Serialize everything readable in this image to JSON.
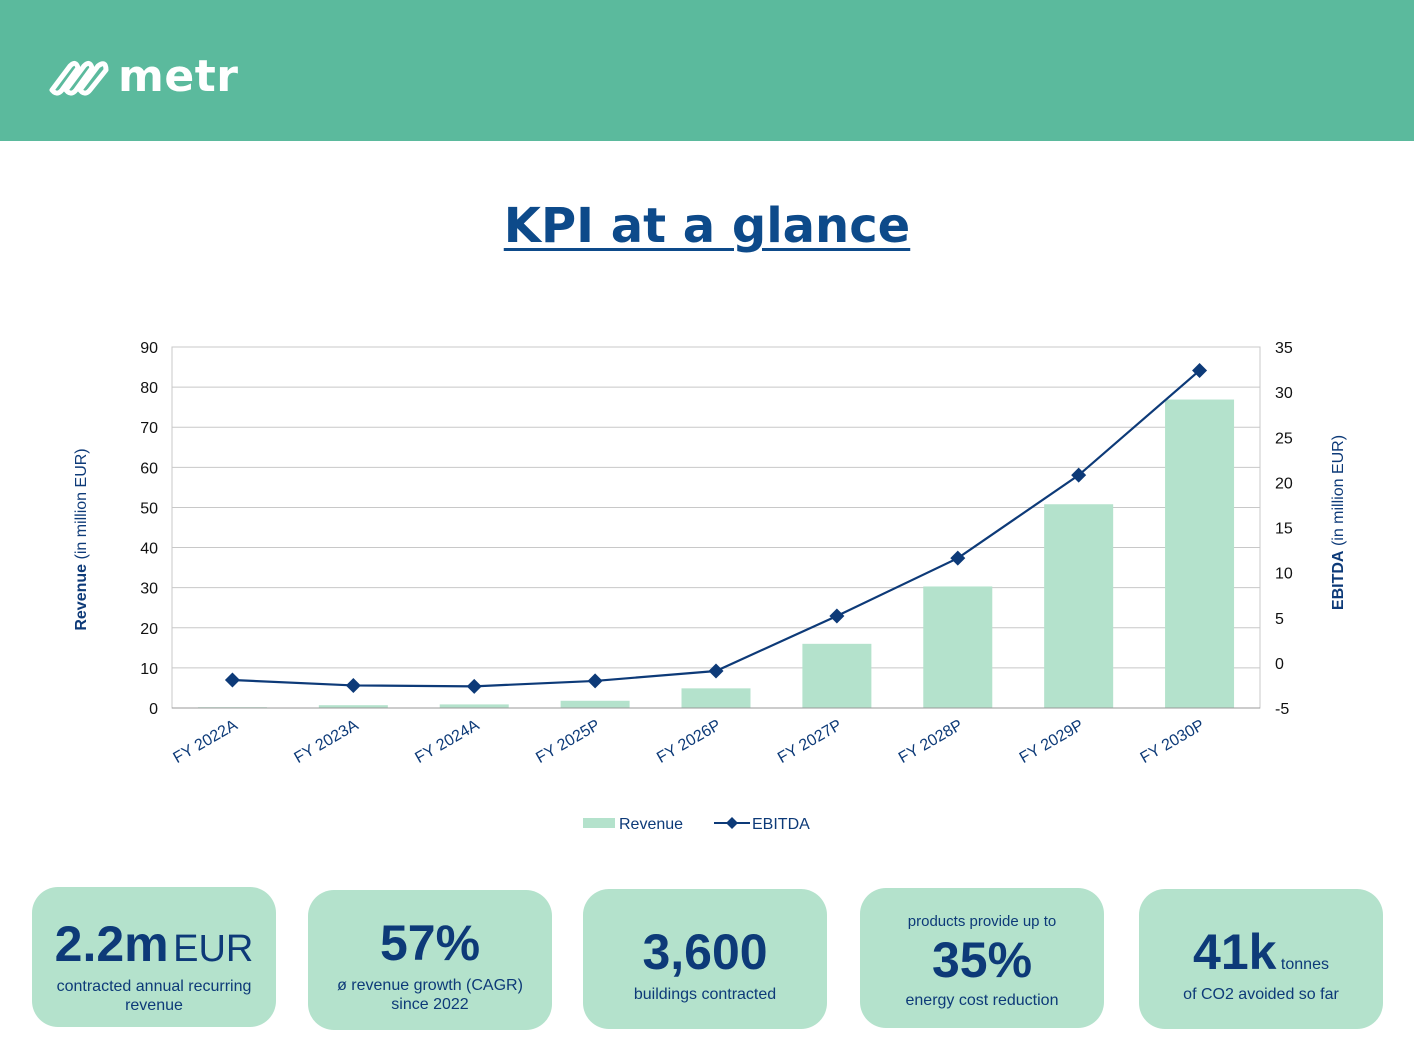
{
  "brand": {
    "name": "metr"
  },
  "title": "KPI at a glance",
  "chart_data": {
    "type": "bar+line",
    "categories": [
      "FY 2022A",
      "FY 2023A",
      "FY 2024A",
      "FY 2025P",
      "FY 2026P",
      "FY 2027P",
      "FY 2028P",
      "FY 2029P",
      "FY 2030P"
    ],
    "series": [
      {
        "name": "Revenue",
        "type": "bar",
        "axis": "left",
        "values": [
          0.2,
          0.7,
          0.9,
          1.8,
          4.9,
          16.0,
          30.3,
          50.8,
          76.9
        ]
      },
      {
        "name": "EBITDA",
        "type": "line",
        "axis": "right",
        "values": [
          -1.9,
          -2.5,
          -2.6,
          -2.0,
          -0.9,
          5.2,
          11.6,
          20.8,
          32.4
        ]
      }
    ],
    "left_axis": {
      "label_bold": "Revenue",
      "label_rest": " (in million EUR)",
      "min": 0,
      "max": 90,
      "ticks": [
        0,
        10,
        20,
        30,
        40,
        50,
        60,
        70,
        80,
        90
      ]
    },
    "right_axis": {
      "label_bold": "EBITDA",
      "label_rest": " (in million EUR)",
      "min": -5,
      "max": 35,
      "ticks": [
        -5,
        0,
        5,
        10,
        15,
        20,
        25,
        30,
        35
      ]
    },
    "grid": true,
    "legend": "bottom-center",
    "colors": {
      "bar": "#b4e2cc",
      "line": "#0d3a78",
      "axis_text": "#0d3a78",
      "grid": "#c8c8c8"
    }
  },
  "cards": [
    {
      "value": "2.2m",
      "unit": "EUR",
      "desc": [
        "contracted annual recurring",
        "revenue"
      ]
    },
    {
      "value": "57%",
      "desc": [
        "ø revenue growth (CAGR)",
        "since 2022"
      ]
    },
    {
      "value": "3,600",
      "desc": [
        "buildings contracted"
      ]
    },
    {
      "pre": "products provide up to",
      "value": "35%",
      "desc": [
        "energy cost reduction"
      ]
    },
    {
      "value": "41k",
      "unit": "tonnes",
      "desc": [
        "of CO2 avoided so far"
      ]
    }
  ],
  "colors": {
    "header": "#5bba9d",
    "card": "#b4e2cc",
    "title": "#0d4a8a"
  }
}
